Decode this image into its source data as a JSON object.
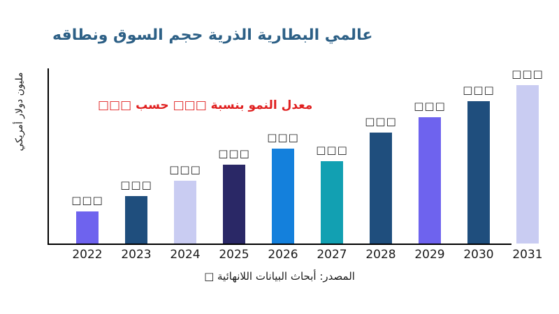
{
  "title": "عالمي البطارية الذرية حجم السوق ونطاقه",
  "annotation": {
    "text": "معدل النمو بنسبة □□□ حسب □□□",
    "color": "#E02020"
  },
  "y_axis": {
    "label": "مليون دولار أمريكي"
  },
  "source_note": "المصدر: أبحاث البيانات اللانهائية □",
  "colors": {
    "title": "#2D6086",
    "axis": "#000000",
    "text": "#1A1A1A",
    "background": "#FFFFFF"
  },
  "chart_data": {
    "type": "bar",
    "title": "عالمي البطارية الذرية حجم السوق ونطاقه",
    "xlabel": "",
    "ylabel": "مليون دولار أمريكي",
    "categories": [
      "2022",
      "2023",
      "2024",
      "2025",
      "2026",
      "2027",
      "2028",
      "2029",
      "2030",
      "2031"
    ],
    "values": [
      46,
      68,
      90,
      113,
      136,
      118,
      159,
      181,
      204,
      227
    ],
    "values_note": "numeric labels not rendered in source image (missing-glyph boxes); values are relative bar heights in px",
    "value_labels": [
      "□□□",
      "□□□",
      "□□□",
      "□□□",
      "□□□",
      "□□□",
      "□□□",
      "□□□",
      "□□□",
      "□□□"
    ],
    "bar_colors": [
      "#6E63EE",
      "#1F4E7D",
      "#C9CCF2",
      "#2A2866",
      "#1480DC",
      "#12A0B2",
      "#1F4E7D",
      "#6E63EE",
      "#1F4E7D",
      "#C9CCF2"
    ],
    "grid": false,
    "legend": false
  }
}
